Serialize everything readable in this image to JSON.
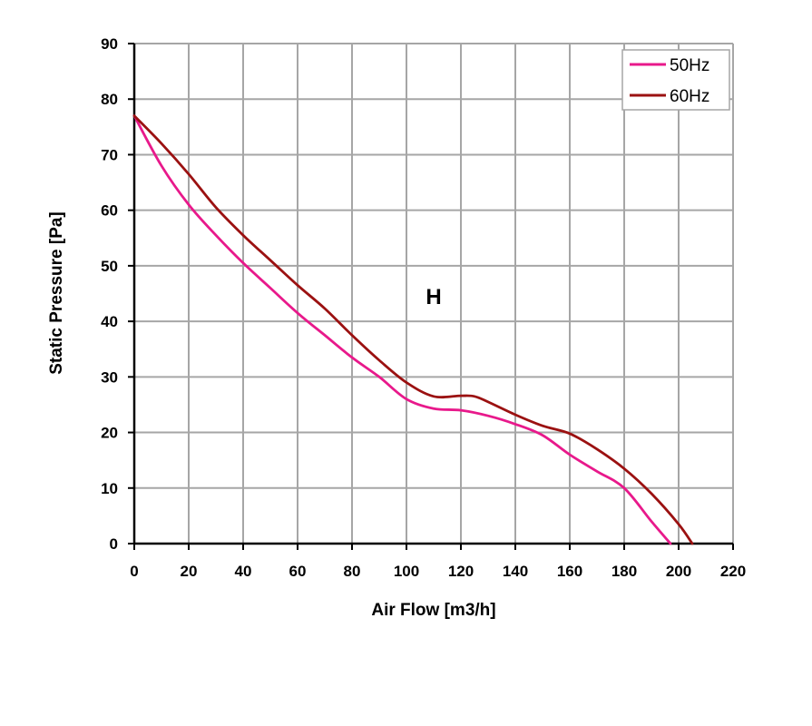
{
  "chart_data": {
    "type": "line",
    "xlabel": "Air Flow [m3/h]",
    "ylabel": "Static Pressure [Pa]",
    "xlim": [
      0,
      220
    ],
    "ylim": [
      0,
      90
    ],
    "xticks": [
      0,
      20,
      40,
      60,
      80,
      100,
      120,
      140,
      160,
      180,
      200,
      220
    ],
    "yticks": [
      0,
      10,
      20,
      30,
      40,
      50,
      60,
      70,
      80,
      90
    ],
    "grid": true,
    "legend_position": "top-right",
    "annotation": "H",
    "series": [
      {
        "name": "50Hz",
        "color": "#e8198b",
        "x": [
          0,
          10,
          20,
          30,
          40,
          50,
          60,
          70,
          80,
          90,
          100,
          110,
          120,
          130,
          140,
          150,
          160,
          170,
          180,
          190,
          197
        ],
        "y": [
          77,
          68,
          61,
          55.5,
          50.5,
          46,
          41.5,
          37.5,
          33.5,
          30,
          26,
          24.3,
          24,
          23,
          21.5,
          19.5,
          16,
          13,
          10,
          4,
          0
        ]
      },
      {
        "name": "60Hz",
        "color": "#9b1111",
        "x": [
          0,
          10,
          20,
          30,
          40,
          50,
          60,
          70,
          80,
          90,
          100,
          110,
          120,
          125,
          130,
          140,
          150,
          160,
          170,
          180,
          190,
          200,
          205
        ],
        "y": [
          77,
          72,
          66.5,
          60.5,
          55.5,
          51,
          46.5,
          42.3,
          37.5,
          33,
          29,
          26.5,
          26.6,
          26.5,
          25.5,
          23.2,
          21.2,
          19.8,
          17,
          13.5,
          9,
          3.5,
          0
        ]
      }
    ]
  }
}
